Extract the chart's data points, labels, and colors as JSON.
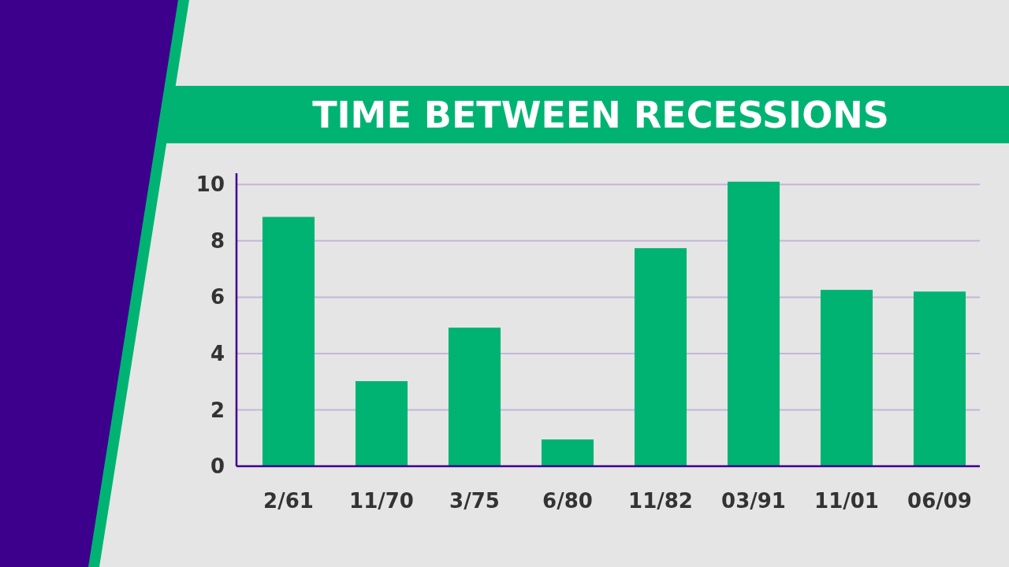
{
  "chart_data": {
    "type": "bar",
    "title": "TIME BETWEEN RECESSIONS",
    "categories": [
      "2/61",
      "11/70",
      "3/75",
      "6/80",
      "11/82",
      "03/91",
      "11/01",
      "06/09"
    ],
    "values": [
      8.85,
      3.02,
      4.92,
      0.95,
      7.74,
      10.1,
      6.26,
      6.2
    ],
    "color": "#00b373",
    "ylim": [
      0,
      10.4
    ],
    "yticks": [
      0,
      2,
      4,
      6,
      8,
      10
    ],
    "grid": "y"
  }
}
